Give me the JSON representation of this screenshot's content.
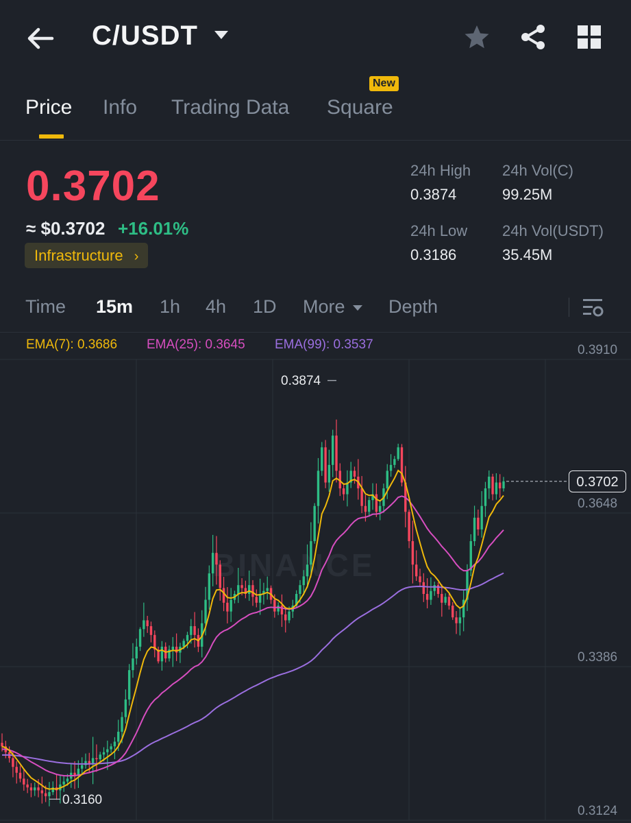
{
  "header": {
    "title": "C/USDT",
    "icons": [
      "back-arrow-icon",
      "caret-down-icon",
      "star-icon",
      "share-icon",
      "grid-icon"
    ]
  },
  "tabs": [
    {
      "label": "Price",
      "active": true
    },
    {
      "label": "Info"
    },
    {
      "label": "Trading Data"
    },
    {
      "label": "Square",
      "badge": "New"
    }
  ],
  "price": {
    "last": "0.3702",
    "usd": "≈ $0.3702",
    "change": "+16.01%",
    "tag": "Infrastructure",
    "colors": {
      "down": "#f6465d",
      "up": "#2ebd85",
      "accent": "#f0b90b"
    }
  },
  "stats": {
    "high_label": "24h High",
    "high_value": "0.3874",
    "low_label": "24h Low",
    "low_value": "0.3186",
    "vol_base_label": "24h Vol(C)",
    "vol_base_value": "99.25M",
    "vol_quote_label": "24h Vol(USDT)",
    "vol_quote_value": "35.45M"
  },
  "intervals": [
    {
      "label": "Time"
    },
    {
      "label": "15m",
      "active": true
    },
    {
      "label": "1h"
    },
    {
      "label": "4h"
    },
    {
      "label": "1D"
    },
    {
      "label": "More"
    },
    {
      "label": "Depth"
    }
  ],
  "ema": {
    "ema7": "EMA(7): 0.3686",
    "ema25": "EMA(25): 0.3645",
    "ema99": "EMA(99): 0.3537",
    "colors": {
      "ema7": "#f0b90b",
      "ema25": "#d74ec0",
      "ema99": "#9b6fe0"
    }
  },
  "chart_data": {
    "type": "candlestick",
    "ylim": [
      0.3124,
      0.391
    ],
    "y_ticks": [
      "0.3910",
      "0.3648",
      "0.3386",
      "0.3124"
    ],
    "current_price": "0.3702",
    "high_annotation": "0.3874",
    "low_annotation": "0.3160",
    "watermark": "BINANCE",
    "closes": [
      0.325,
      0.324,
      0.323,
      0.3215,
      0.3205,
      0.3195,
      0.3185,
      0.318,
      0.3175,
      0.318,
      0.3175,
      0.317,
      0.3165,
      0.3172,
      0.318,
      0.3175,
      0.3185,
      0.319,
      0.3195,
      0.3205,
      0.32,
      0.3212,
      0.3218,
      0.3225,
      0.322,
      0.323,
      0.3228,
      0.3236,
      0.324,
      0.3245,
      0.325,
      0.3258,
      0.3275,
      0.33,
      0.333,
      0.338,
      0.34,
      0.342,
      0.345,
      0.3465,
      0.3455,
      0.344,
      0.3415,
      0.3395,
      0.342,
      0.34,
      0.3415,
      0.342,
      0.341,
      0.342,
      0.343,
      0.344,
      0.3455,
      0.344,
      0.342,
      0.346,
      0.35,
      0.3545,
      0.358,
      0.356,
      0.352,
      0.3495,
      0.348,
      0.35,
      0.351,
      0.3525,
      0.352,
      0.351,
      0.3525,
      0.3505,
      0.3495,
      0.351,
      0.3515,
      0.352,
      0.35,
      0.348,
      0.349,
      0.3475,
      0.3465,
      0.348,
      0.349,
      0.351,
      0.3525,
      0.354,
      0.356,
      0.36,
      0.366,
      0.372,
      0.376,
      0.37,
      0.373,
      0.378,
      0.372,
      0.369,
      0.368,
      0.37,
      0.372,
      0.371,
      0.369,
      0.366,
      0.365,
      0.367,
      0.368,
      0.365,
      0.366,
      0.369,
      0.372,
      0.373,
      0.374,
      0.376,
      0.37,
      0.365,
      0.36,
      0.356,
      0.354,
      0.353,
      0.351,
      0.35,
      0.3515,
      0.3525,
      0.351,
      0.3495,
      0.3505,
      0.349,
      0.347,
      0.346,
      0.347,
      0.35,
      0.355,
      0.36,
      0.364,
      0.362,
      0.366,
      0.369,
      0.371,
      0.368,
      0.37,
      0.369,
      0.3702
    ]
  }
}
